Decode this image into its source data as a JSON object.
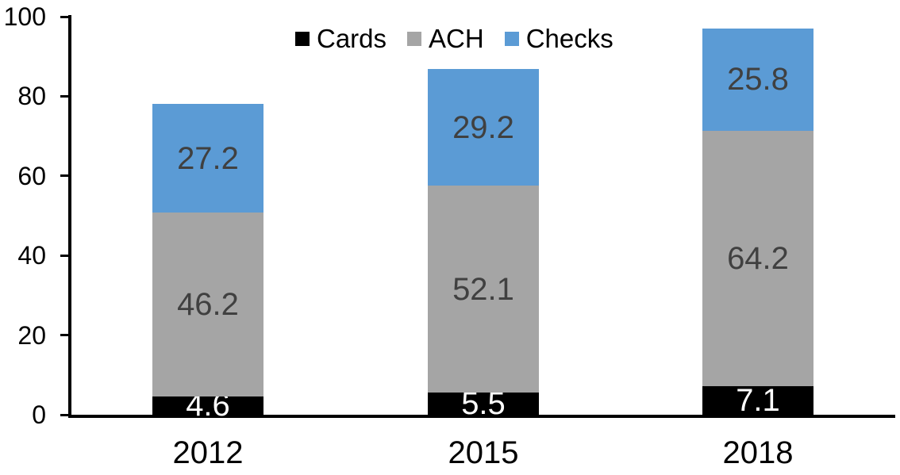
{
  "chart_data": {
    "type": "bar",
    "stacked": true,
    "title": "",
    "xlabel": "",
    "ylabel": "",
    "categories": [
      "2012",
      "2015",
      "2018"
    ],
    "series": [
      {
        "name": "Cards",
        "color": "#000000",
        "label_color": "#ffffff",
        "values": [
          4.6,
          5.5,
          7.1
        ]
      },
      {
        "name": "ACH",
        "color": "#A5A5A5",
        "label_color": "#404040",
        "values": [
          46.2,
          52.1,
          64.2
        ]
      },
      {
        "name": "Checks",
        "color": "#5B9BD5",
        "label_color": "#404040",
        "values": [
          27.2,
          29.2,
          25.8
        ]
      }
    ],
    "ylim": [
      0,
      100
    ],
    "yticks": [
      0,
      20,
      40,
      60,
      80,
      100
    ],
    "grid": false,
    "legend_position": "top",
    "axis_color": "#000000",
    "background_color": "#ffffff"
  }
}
